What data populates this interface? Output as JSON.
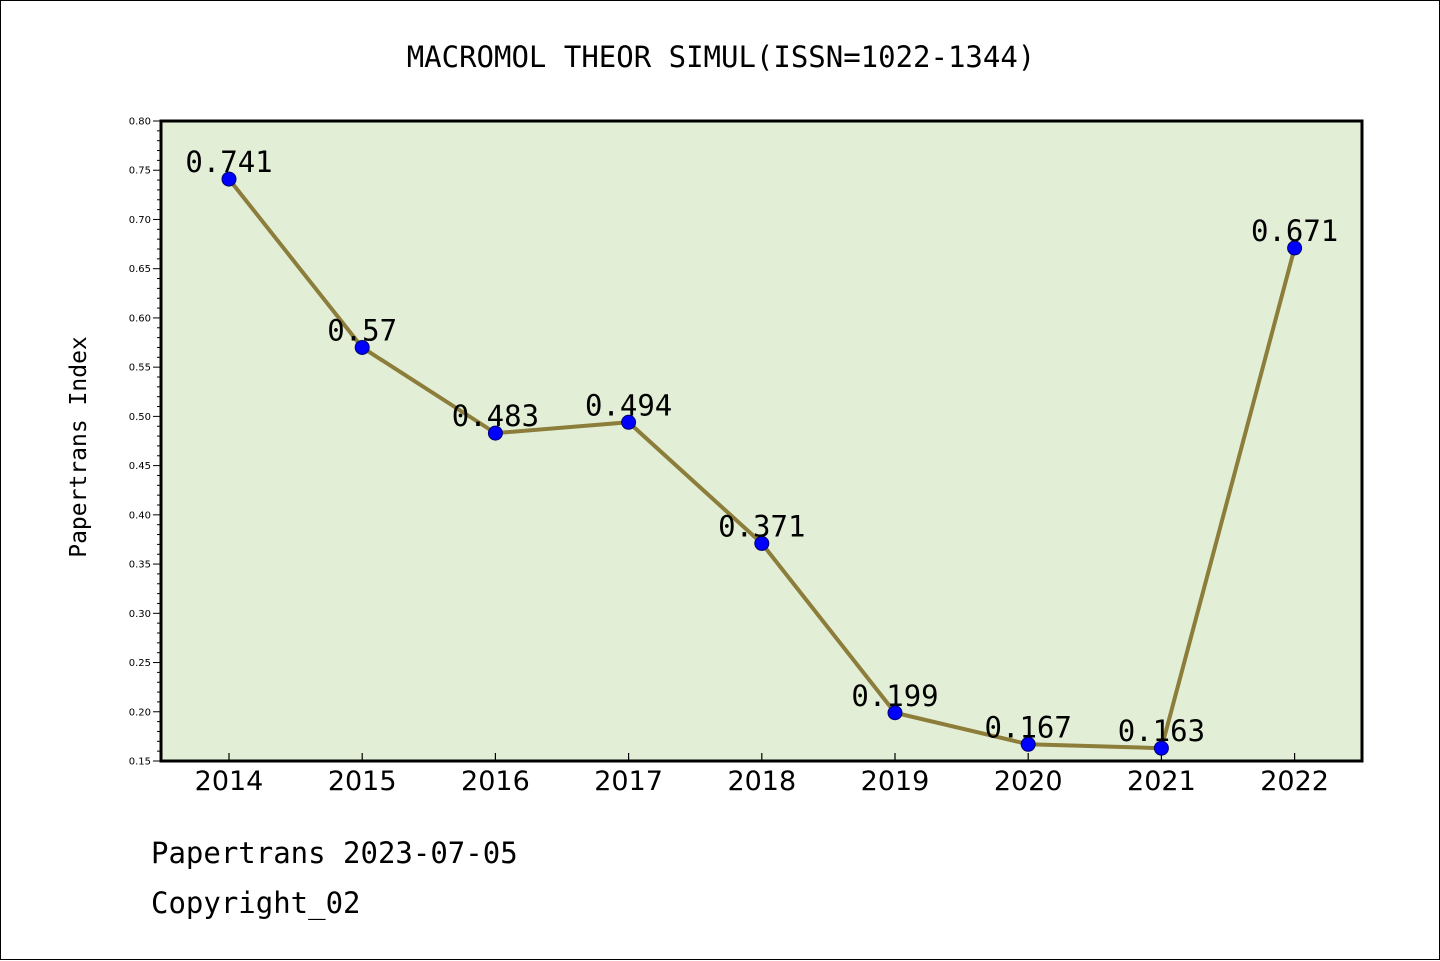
{
  "chart_data": {
    "type": "line",
    "title": "MACROMOL THEOR SIMUL(ISSN=1022-1344)",
    "xlabel": "",
    "ylabel": "Papertrans Index",
    "categories": [
      "2014",
      "2015",
      "2016",
      "2017",
      "2018",
      "2019",
      "2020",
      "2021",
      "2022"
    ],
    "series": [
      {
        "values": [
          0.741,
          0.57,
          0.483,
          0.494,
          0.371,
          0.199,
          0.167,
          0.163,
          0.671
        ]
      }
    ],
    "data_labels": [
      "0.741",
      "0.57",
      "0.483",
      "0.494",
      "0.371",
      "0.199",
      "0.167",
      "0.163",
      "0.671"
    ],
    "ylim": [
      0.15,
      0.8
    ],
    "yticks": [
      "0.15",
      "0.20",
      "0.25",
      "0.30",
      "0.35",
      "0.40",
      "0.45",
      "0.50",
      "0.55",
      "0.60",
      "0.65",
      "0.70",
      "0.75",
      "0.80"
    ],
    "grid": false,
    "legend": "none",
    "colors": {
      "plot_background": "#e2efd6",
      "line": "#8c7d3b",
      "marker": "#0000ff"
    }
  },
  "footer": {
    "date_text": "Papertrans 2023-07-05",
    "copyright_text": "Copyright_02"
  }
}
